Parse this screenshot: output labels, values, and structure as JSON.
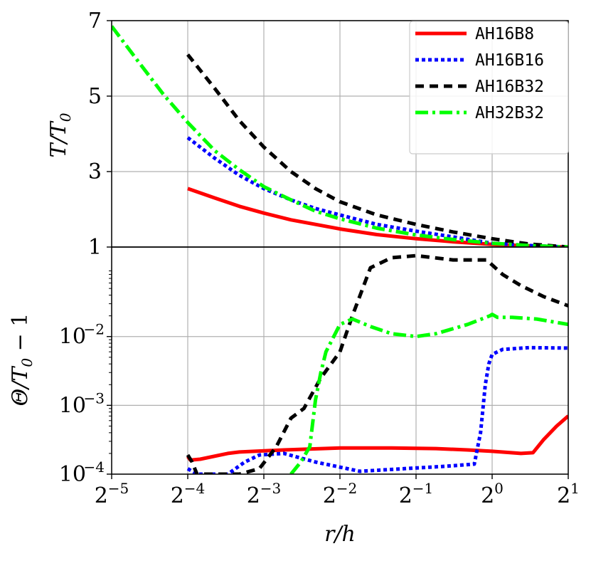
{
  "chart_data": [
    {
      "type": "line",
      "x_scale": "log2",
      "xlim": [
        0.03125,
        2
      ],
      "ylim": [
        1,
        7
      ],
      "y_scale": "linear",
      "ylabel": "T/T0",
      "ylabel_parts": {
        "main": "T/T",
        "sub": "0"
      },
      "yticks": [
        {
          "value": 1,
          "label": "1"
        },
        {
          "value": 3,
          "label": "3"
        },
        {
          "value": 5,
          "label": "5"
        },
        {
          "value": 7,
          "label": "7"
        }
      ],
      "grid": true,
      "legend_position": "top-right",
      "series": [
        {
          "name": "AH16B8",
          "color": "#ff0000",
          "style": "solid",
          "x": [
            0.0625,
            0.08,
            0.1,
            0.125,
            0.16,
            0.2,
            0.25,
            0.35,
            0.5,
            0.7,
            1.0,
            1.4,
            2.0
          ],
          "y": [
            2.55,
            2.3,
            2.08,
            1.9,
            1.72,
            1.6,
            1.48,
            1.33,
            1.22,
            1.14,
            1.07,
            1.03,
            1.0
          ]
        },
        {
          "name": "AH16B16",
          "color": "#0000ff",
          "style": "dotted",
          "x": [
            0.0625,
            0.08,
            0.1,
            0.125,
            0.16,
            0.2,
            0.25,
            0.35,
            0.5,
            0.7,
            1.0,
            1.4,
            2.0
          ],
          "y": [
            3.9,
            3.35,
            2.9,
            2.55,
            2.25,
            2.02,
            1.85,
            1.6,
            1.42,
            1.27,
            1.1,
            1.04,
            1.0
          ]
        },
        {
          "name": "AH16B32",
          "color": "#000000",
          "style": "dashed",
          "x": [
            0.0625,
            0.08,
            0.1,
            0.125,
            0.16,
            0.2,
            0.25,
            0.35,
            0.5,
            0.7,
            1.0,
            1.4,
            2.0
          ],
          "y": [
            6.1,
            5.2,
            4.35,
            3.65,
            3.0,
            2.55,
            2.2,
            1.85,
            1.6,
            1.4,
            1.22,
            1.08,
            1.0
          ]
        },
        {
          "name": "AH32B32",
          "color": "#00ff00",
          "style": "dashdot",
          "x": [
            0.03125,
            0.04,
            0.05,
            0.0625,
            0.08,
            0.1,
            0.125,
            0.16,
            0.2,
            0.25,
            0.35,
            0.5,
            0.7,
            1.0,
            1.4,
            2.0
          ],
          "y": [
            6.85,
            5.9,
            5.05,
            4.3,
            3.55,
            3.05,
            2.6,
            2.25,
            1.95,
            1.75,
            1.5,
            1.32,
            1.2,
            1.1,
            1.04,
            1.0
          ]
        }
      ]
    },
    {
      "type": "line",
      "x_scale": "log2",
      "y_scale": "log",
      "xlim": [
        0.03125,
        2
      ],
      "ylim": [
        0.0001,
        0.2
      ],
      "xlabel": "r/h",
      "ylabel": "Θ/T0 − 1",
      "ylabel_parts": {
        "main": "Θ/T",
        "sub": "0",
        "rest": " − 1"
      },
      "xticks": [
        {
          "value": 0.03125,
          "base": "2",
          "exp": "−5"
        },
        {
          "value": 0.0625,
          "base": "2",
          "exp": "−4"
        },
        {
          "value": 0.125,
          "base": "2",
          "exp": "−3"
        },
        {
          "value": 0.25,
          "base": "2",
          "exp": "−2"
        },
        {
          "value": 0.5,
          "base": "2",
          "exp": "−1"
        },
        {
          "value": 1,
          "base": "2",
          "exp": "0"
        },
        {
          "value": 2,
          "base": "2",
          "exp": "1"
        }
      ],
      "yticks": [
        {
          "value": 0.0001,
          "base": "10",
          "exp": "−4"
        },
        {
          "value": 0.001,
          "base": "10",
          "exp": "−3"
        },
        {
          "value": 0.01,
          "base": "10",
          "exp": "−2"
        }
      ],
      "grid": true,
      "series": [
        {
          "name": "AH16B8",
          "color": "#ff0000",
          "style": "solid",
          "x": [
            0.0625,
            0.064,
            0.07,
            0.09,
            0.1,
            0.15,
            0.25,
            0.4,
            0.6,
            0.8,
            1.0,
            1.3,
            1.45,
            1.6,
            1.8,
            2.0
          ],
          "y": [
            0.00018,
            0.00016,
            0.000165,
            0.0002,
            0.00021,
            0.000225,
            0.00024,
            0.00024,
            0.000235,
            0.000225,
            0.000215,
            0.0002,
            0.000205,
            0.00032,
            0.0005,
            0.0007
          ]
        },
        {
          "name": "AH16B16",
          "color": "#0000ff",
          "style": "dotted",
          "x": [
            0.0625,
            0.065,
            0.068,
            0.075,
            0.09,
            0.105,
            0.12,
            0.15,
            0.2,
            0.3,
            0.45,
            0.65,
            0.85,
            0.9,
            0.94,
            0.97,
            1.0,
            1.1,
            1.4,
            2.0
          ],
          "y": [
            0.00012,
            0.00011,
            0.0001,
            0.0001,
            0.0001,
            0.00015,
            0.00019,
            0.0002,
            0.00015,
            0.00011,
            0.00012,
            0.00013,
            0.00014,
            0.0004,
            0.002,
            0.004,
            0.0055,
            0.0065,
            0.0069,
            0.0068
          ]
        },
        {
          "name": "AH16B32",
          "color": "#000000",
          "style": "dashed",
          "x": [
            0.0625,
            0.065,
            0.068,
            0.1,
            0.12,
            0.14,
            0.16,
            0.18,
            0.21,
            0.25,
            0.28,
            0.33,
            0.4,
            0.5,
            0.7,
            0.95,
            1.0,
            1.1,
            1.3,
            1.6,
            2.0
          ],
          "y": [
            0.00019,
            0.00015,
            0.0001,
            0.0001,
            0.00012,
            0.00025,
            0.00065,
            0.0009,
            0.0025,
            0.006,
            0.02,
            0.1,
            0.14,
            0.15,
            0.13,
            0.13,
            0.11,
            0.08,
            0.055,
            0.038,
            0.028
          ]
        },
        {
          "name": "AH32B32",
          "color": "#00ff00",
          "style": "dashdot",
          "x": [
            0.16,
            0.175,
            0.19,
            0.2,
            0.21,
            0.22,
            0.25,
            0.28,
            0.33,
            0.4,
            0.5,
            0.6,
            0.8,
            0.98,
            1.0,
            1.05,
            1.2,
            1.5,
            2.0
          ],
          "y": [
            0.0001,
            0.00015,
            0.00025,
            0.0012,
            0.003,
            0.006,
            0.015,
            0.018,
            0.014,
            0.011,
            0.01,
            0.011,
            0.015,
            0.02,
            0.021,
            0.019,
            0.019,
            0.018,
            0.015
          ]
        }
      ]
    }
  ]
}
